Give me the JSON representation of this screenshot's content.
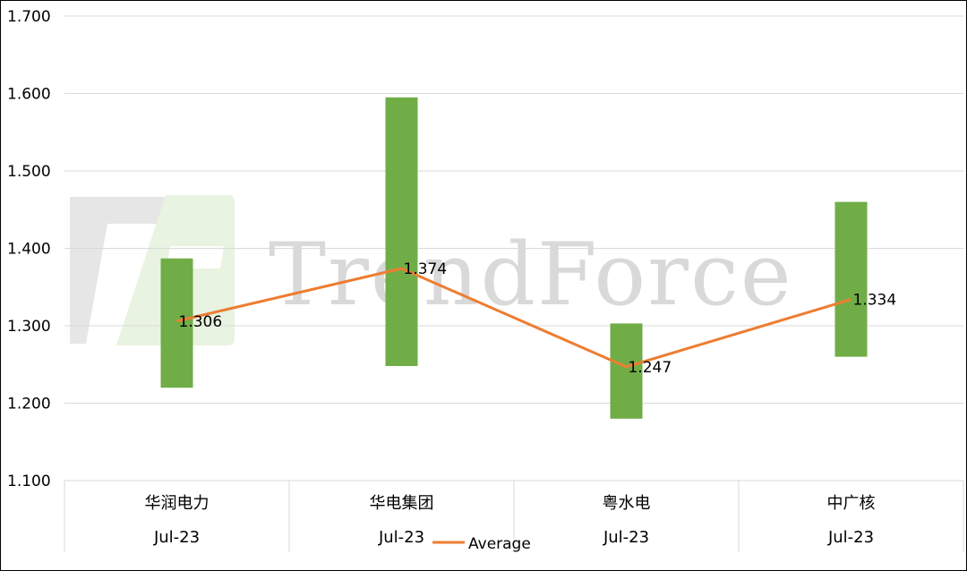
{
  "chart_data": {
    "type": "bar",
    "bar_style": "floating-range",
    "categories": [
      "华润电力",
      "华电集团",
      "粤水电",
      "中广核"
    ],
    "period_labels": [
      "Jul-23",
      "Jul-23",
      "Jul-23",
      "Jul-23"
    ],
    "range_low": [
      1.22,
      1.248,
      1.18,
      1.26
    ],
    "range_high": [
      1.387,
      1.595,
      1.303,
      1.46
    ],
    "series": [
      {
        "name": "Average",
        "type": "line",
        "values": [
          1.306,
          1.374,
          1.247,
          1.334
        ],
        "labels": [
          "1.306",
          "1.374",
          "1.247",
          "1.334"
        ]
      }
    ],
    "ylim": [
      1.1,
      1.7
    ],
    "yticks": [
      "1.100",
      "1.200",
      "1.300",
      "1.400",
      "1.500",
      "1.600",
      "1.700"
    ],
    "grid": true,
    "legend": "bottom-center",
    "colors": {
      "bar": "#70ad47",
      "line": "#ed7d31",
      "grid": "#d9d9d9"
    },
    "watermark": "TrendForce"
  }
}
